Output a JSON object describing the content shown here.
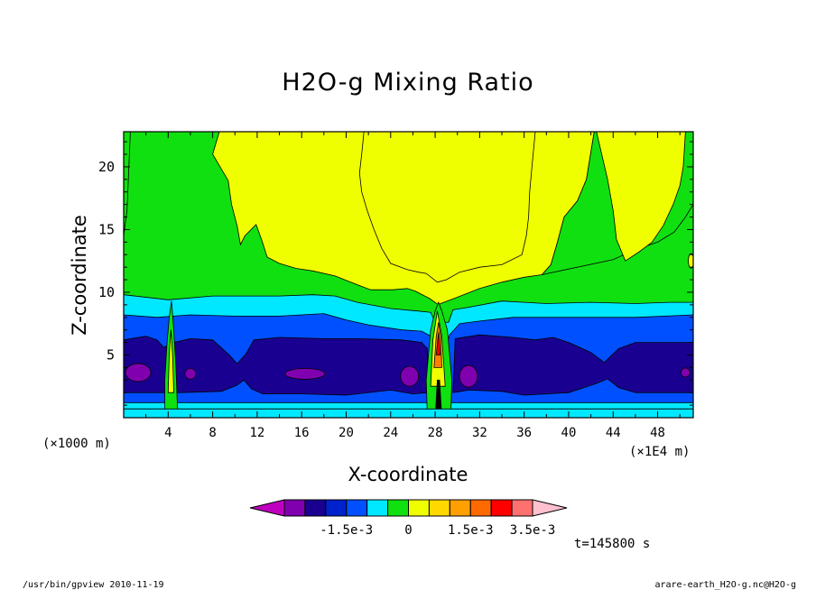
{
  "chart_data": {
    "type": "heatmap",
    "title": "H2O-g Mixing Ratio",
    "xlabel": "X-coordinate",
    "ylabel": "Z-coordinate",
    "x_unit": "(×1000 m)",
    "y_unit": "(×1E4 m)",
    "xlim": [
      0,
      51.2
    ],
    "ylim": [
      0,
      22.8
    ],
    "x_ticks": [
      4,
      8,
      12,
      16,
      20,
      24,
      28,
      32,
      36,
      40,
      44,
      48
    ],
    "y_ticks": [
      5,
      10,
      15,
      20
    ],
    "x_tick_labels": [
      "4",
      "8",
      "12",
      "16",
      "20",
      "24",
      "28",
      "32",
      "36",
      "40",
      "44",
      "48"
    ],
    "y_tick_labels": [
      "5",
      "10",
      "15",
      "20"
    ],
    "time_label": "t=145800 s",
    "colorbar": {
      "colors": [
        "#c000c0",
        "#8000b0",
        "#1a0090",
        "#0022cc",
        "#0050ff",
        "#00e8ff",
        "#10e010",
        "#f0ff00",
        "#ffd800",
        "#ffa000",
        "#ff6a00",
        "#ff0000",
        "#ff7070",
        "#ffc0d0"
      ],
      "tick_values": [
        -0.0015,
        0,
        0.0015,
        0.0035
      ],
      "tick_labels": [
        "-1.5e-3",
        "0",
        "1.5e-3",
        "3.5e-3"
      ]
    },
    "field_colors": {
      "yellow": "#f0ff00",
      "green": "#10e010",
      "cyan": "#00e8ff",
      "blue": "#0050ff",
      "navy": "#1a0090",
      "purple": "#8000b0",
      "orange": "#ff8000",
      "red": "#ff0000"
    }
  },
  "footer": {
    "left": "/usr/bin/gpview   2010-11-19",
    "right": "arare-earth_H2O-g.nc@H2O-g"
  }
}
